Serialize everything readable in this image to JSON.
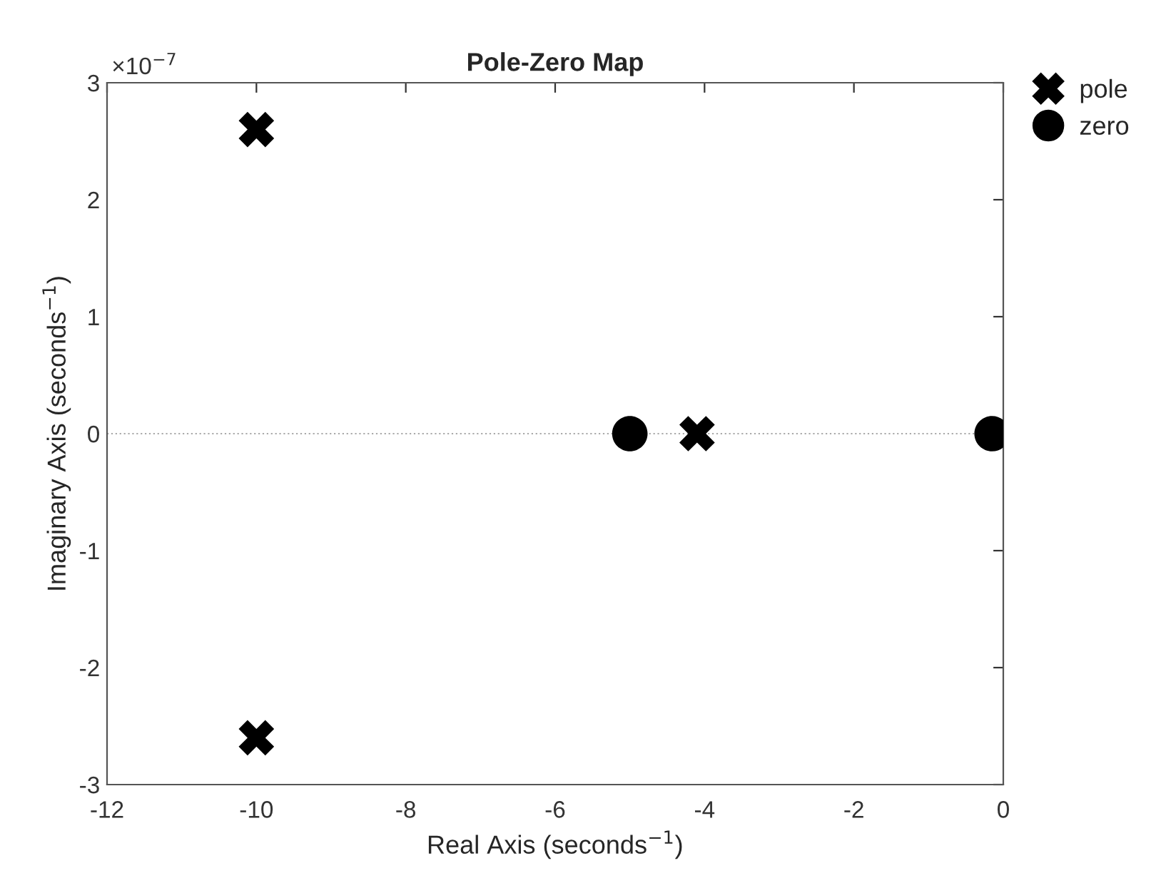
{
  "chart_data": {
    "type": "scatter",
    "title": "Pole-Zero Map",
    "xlabel": "Real Axis (seconds$^{−1}$)",
    "ylabel": "Imaginary Axis (seconds$^{−1}$)",
    "series": [
      {
        "name": "pole",
        "color": "#000000",
        "marker": "cross",
        "x": [
          -10.0,
          -10.0,
          -4.1
        ],
        "values": [
          2.6,
          -2.6,
          0
        ]
      },
      {
        "name": "zero",
        "color": "#000000",
        "marker": "circle",
        "x": [
          -5.0,
          -0.15
        ],
        "values": [
          0,
          0
        ]
      }
    ],
    "xlim": [
      -12,
      0
    ],
    "xticks": [
      -12,
      -10,
      -8,
      -6,
      -4,
      -2,
      0
    ],
    "ylim": [
      -3,
      3
    ],
    "yticks": [
      -3,
      -2,
      -1,
      0,
      1,
      2,
      3
    ],
    "annotations": [
      "×10$^{−7}$"
    ],
    "ref_lines": [
      {
        "axis": "y",
        "value": 0,
        "label": null,
        "color": "#aaaaaa",
        "line_style": "dotted"
      }
    ],
    "grid": false,
    "legend": "top right"
  }
}
